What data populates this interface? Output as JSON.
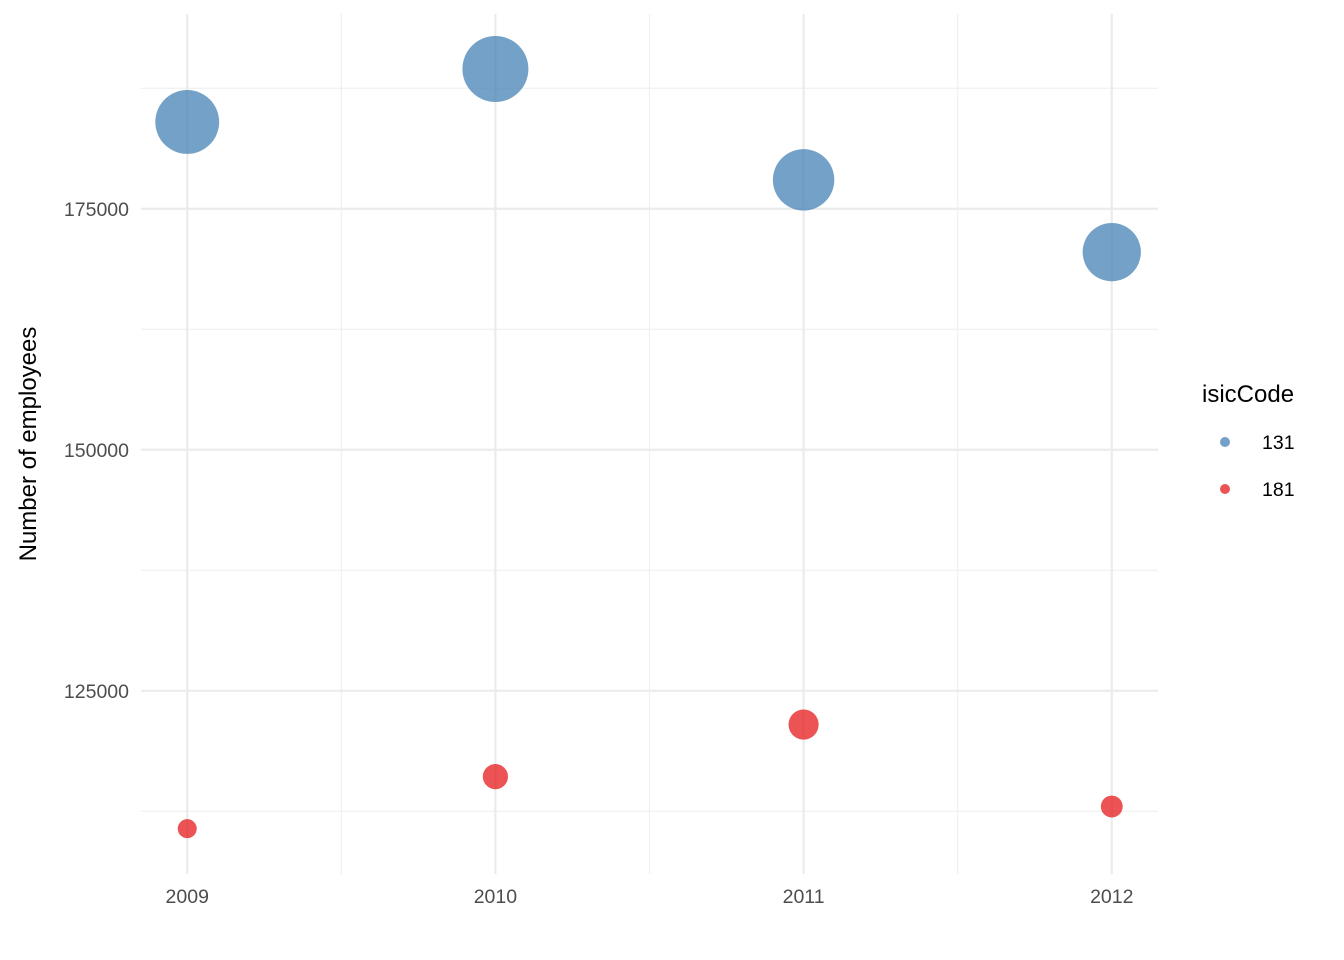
{
  "chart_data": {
    "type": "scatter",
    "title": "",
    "xlabel": "",
    "ylabel": "Number of employees",
    "x_ticks": [
      "2009",
      "2010",
      "2011",
      "2012"
    ],
    "y_ticks": [
      "125000",
      "150000",
      "175000"
    ],
    "xlim": [
      2008.85,
      2012.15
    ],
    "ylim": [
      106000,
      195200
    ],
    "grid": true,
    "legend_title": "isicCode",
    "legend_position": "right",
    "series": [
      {
        "name": "131",
        "color": "#4682b4",
        "x": [
          2009,
          2010,
          2011,
          2012
        ],
        "y": [
          184000,
          189500,
          178000,
          170500
        ],
        "size": [
          184000,
          189500,
          178000,
          170500
        ]
      },
      {
        "name": "181",
        "color": "#e41a1c",
        "x": [
          2009,
          2010,
          2011,
          2012
        ],
        "y": [
          110700,
          116100,
          121500,
          113000
        ],
        "size": [
          110700,
          116100,
          121500,
          113000
        ]
      }
    ]
  }
}
